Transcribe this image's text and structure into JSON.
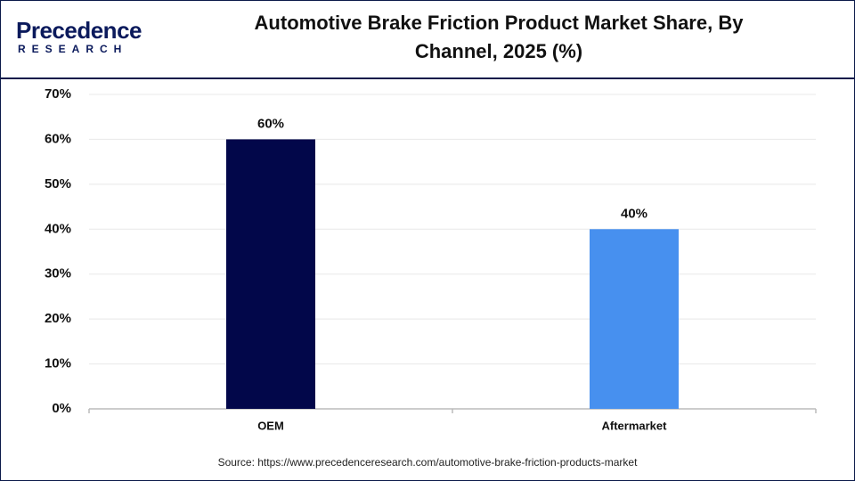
{
  "logo": {
    "name": "Precedence",
    "tagline": "RESEARCH"
  },
  "chart_data": {
    "type": "bar",
    "title": "Automotive Brake Friction Product Market Share, By Channel, 2025 (%)",
    "categories": [
      "OEM",
      "Aftermarket"
    ],
    "values": [
      60,
      40
    ],
    "value_labels": [
      "60%",
      "40%"
    ],
    "colors": [
      "#02074a",
      "#4790ef"
    ],
    "ylim": [
      0,
      70
    ],
    "yticks": [
      {
        "value": 0,
        "label": "0%"
      },
      {
        "value": 10,
        "label": "10%"
      },
      {
        "value": 20,
        "label": "20%"
      },
      {
        "value": 30,
        "label": "30%"
      },
      {
        "value": 40,
        "label": "40%"
      },
      {
        "value": 50,
        "label": "50%"
      },
      {
        "value": 60,
        "label": "60%"
      },
      {
        "value": 70,
        "label": "70%"
      }
    ],
    "grid": true,
    "source": "Source: https://www.precedenceresearch.com/automotive-brake-friction-products-market"
  }
}
